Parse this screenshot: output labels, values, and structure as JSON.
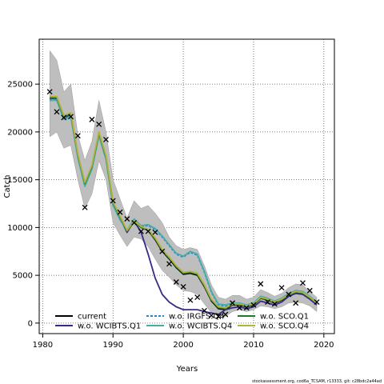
{
  "chart_data": {
    "type": "line",
    "xlabel": "Years",
    "ylabel": "Catch",
    "xlim": [
      1979.5,
      2021.5
    ],
    "ylim": [
      -1100,
      29700
    ],
    "xticks": [
      1980,
      1990,
      2000,
      2010,
      2020
    ],
    "yticks": [
      0,
      5000,
      10000,
      15000,
      20000,
      25000
    ],
    "grid": true,
    "legend_position": "bottom",
    "footer": "stockassessment.org, cod6a_TCSAM, r13333, git: c28bdc2a44ad",
    "confidence_band": {
      "color": "#bebebe",
      "x": [
        1981,
        1982,
        1983,
        1984,
        1985,
        1986,
        1987,
        1988,
        1989,
        1990,
        1991,
        1992,
        1993,
        1994,
        1995,
        1996,
        1997,
        1998,
        1999,
        2000,
        2001,
        2002,
        2003,
        2004,
        2005,
        2006,
        2007,
        2008,
        2009,
        2010,
        2011,
        2012,
        2013,
        2014,
        2015,
        2016,
        2017,
        2018,
        2019
      ],
      "upper": [
        28500,
        27500,
        24200,
        25000,
        19700,
        17000,
        19000,
        23300,
        20000,
        15000,
        13000,
        11000,
        12800,
        12000,
        12300,
        11500,
        10500,
        9000,
        8100,
        7700,
        7900,
        7700,
        6000,
        4000,
        2700,
        2500,
        2900,
        2900,
        2500,
        2700,
        3500,
        3200,
        2800,
        3100,
        3700,
        4100,
        4000,
        3300,
        2700
      ],
      "lower": [
        19500,
        20000,
        18300,
        18600,
        15000,
        12000,
        13500,
        17000,
        15000,
        10500,
        9200,
        8000,
        9000,
        8800,
        8000,
        6700,
        5500,
        4800,
        4000,
        3400,
        3300,
        3000,
        2000,
        1100,
        800,
        700,
        1200,
        1400,
        1200,
        1400,
        1800,
        1700,
        1500,
        1700,
        2100,
        2200,
        2100,
        1800,
        1200
      ]
    },
    "series": [
      {
        "name": "current",
        "color": "#000000",
        "dash": "",
        "values": [
          23500,
          23500,
          21500,
          21800,
          17500,
          14500,
          16300,
          19800,
          17300,
          12500,
          11000,
          9500,
          10700,
          10000,
          9700,
          8700,
          7500,
          6700,
          5800,
          5100,
          5200,
          5000,
          3800,
          2300,
          1500,
          1400,
          1900,
          1900,
          1700,
          1900,
          2600,
          2400,
          2100,
          2400,
          2900,
          3200,
          3100,
          2600,
          2000
        ]
      },
      {
        "name": "w.o. WCIBTS.Q1",
        "color": "#352a87",
        "dash": "",
        "values": [
          23500,
          23500,
          21500,
          21800,
          17500,
          14500,
          16300,
          19800,
          17300,
          12500,
          11000,
          9500,
          10700,
          9500,
          7200,
          4700,
          3000,
          2200,
          1700,
          1400,
          1400,
          1400,
          1200,
          1050,
          900,
          1400,
          1600,
          1700,
          1500,
          1700,
          2300,
          2100,
          1900,
          2200,
          2800,
          3100,
          3000,
          2500,
          1900
        ]
      },
      {
        "name": "w.o. IRGFS.Q4",
        "color": "#2b84c5",
        "dash": "3,2",
        "values": [
          23400,
          23400,
          21400,
          21700,
          17400,
          14400,
          16200,
          19700,
          17200,
          12400,
          10900,
          9600,
          10800,
          10100,
          10200,
          9800,
          9000,
          8100,
          7200,
          6900,
          7400,
          7100,
          5300,
          3200,
          1900,
          1800,
          2000,
          2000,
          1800,
          2000,
          2700,
          2500,
          2200,
          2500,
          3000,
          3300,
          3200,
          2700,
          2100
        ]
      },
      {
        "name": "w.o. WCIBTS.Q4",
        "color": "#47ada8",
        "dash": "",
        "values": [
          23300,
          23300,
          21300,
          21600,
          17300,
          14300,
          16100,
          19600,
          17100,
          12300,
          10800,
          9700,
          10900,
          10200,
          10300,
          9900,
          9100,
          8200,
          7300,
          7000,
          7500,
          7200,
          5400,
          3300,
          2000,
          1900,
          2100,
          2100,
          1900,
          2100,
          2800,
          2600,
          2300,
          2600,
          3100,
          3400,
          3300,
          2800,
          2200
        ]
      },
      {
        "name": "w.o. SCO.Q1",
        "color": "#1a7a2a",
        "dash": "",
        "values": [
          23600,
          23600,
          21600,
          21900,
          17600,
          14600,
          16400,
          19900,
          17400,
          12600,
          11100,
          9600,
          10600,
          10000,
          9700,
          8800,
          7600,
          6800,
          5900,
          5200,
          5300,
          5100,
          3900,
          2400,
          1600,
          1500,
          1950,
          1950,
          1750,
          1950,
          2650,
          2450,
          2150,
          2450,
          2950,
          3250,
          3150,
          2650,
          2050
        ]
      },
      {
        "name": "w.o. SCO.Q4",
        "color": "#b5b23a",
        "dash": "",
        "values": [
          23700,
          23700,
          21700,
          22000,
          17700,
          14700,
          16500,
          20000,
          17500,
          12700,
          11200,
          9700,
          10700,
          10100,
          9800,
          8900,
          7700,
          6900,
          6000,
          5300,
          5400,
          5200,
          4000,
          2500,
          1700,
          1600,
          2000,
          2000,
          1800,
          2000,
          2700,
          2500,
          2200,
          2500,
          3000,
          3300,
          3200,
          2700,
          2100
        ]
      }
    ],
    "observed": {
      "marker": "x",
      "x": [
        1981,
        1982,
        1983,
        1984,
        1985,
        1986,
        1987,
        1988,
        1989,
        1990,
        1991,
        1992,
        1993,
        1994,
        1995,
        1996,
        1997,
        1998,
        1999,
        2000,
        2001,
        2002,
        2003,
        2004,
        2005,
        2006,
        2007,
        2008,
        2009,
        2010,
        2011,
        2012,
        2013,
        2014,
        2015,
        2016,
        2017,
        2018,
        2019
      ],
      "y": [
        24200,
        22100,
        21500,
        21600,
        19600,
        12100,
        21300,
        20800,
        19200,
        12800,
        11600,
        10900,
        10500,
        9600,
        9600,
        9500,
        7500,
        6200,
        4300,
        3800,
        2400,
        2700,
        1300,
        800,
        700,
        900,
        2100,
        1600,
        1600,
        1900,
        4100,
        2200,
        2000,
        3700,
        3000,
        2100,
        4200,
        3400,
        2200
      ]
    }
  }
}
